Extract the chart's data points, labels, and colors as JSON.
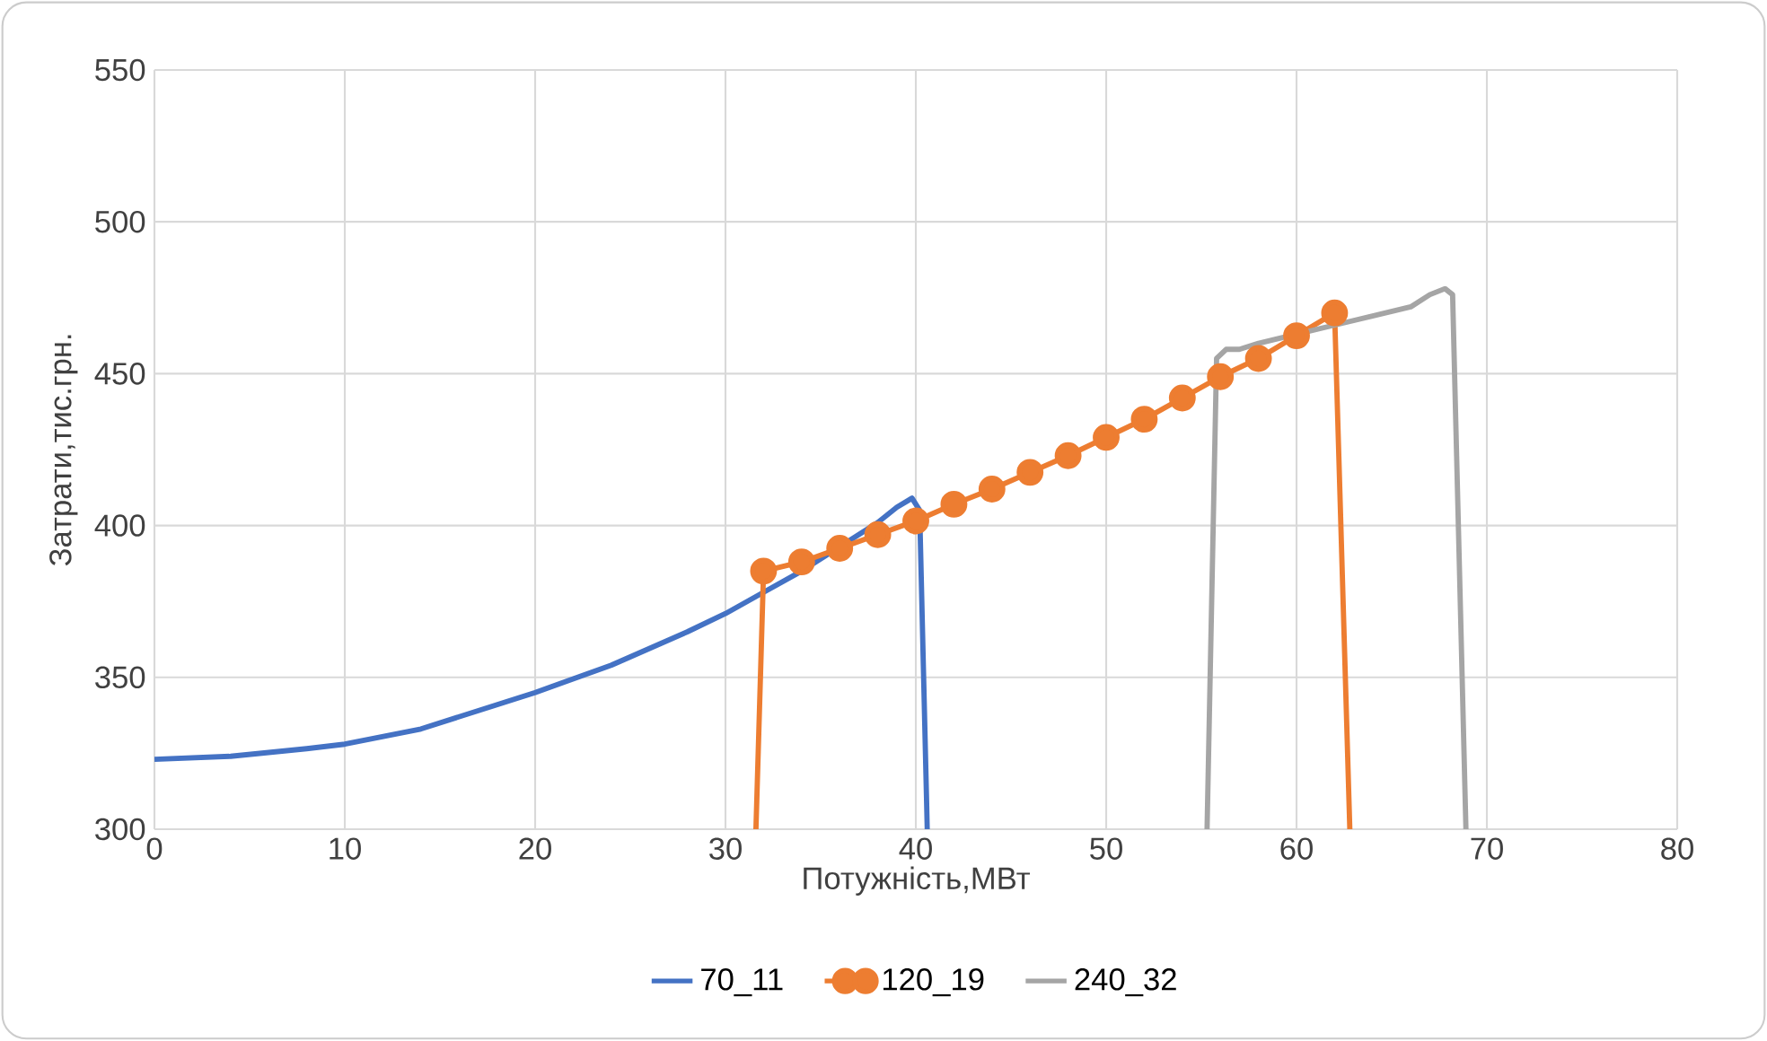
{
  "chart_data": {
    "type": "line",
    "xlabel": "Потужність,МВт",
    "ylabel": "Затрати,тис.грн.",
    "xlim": [
      0,
      80
    ],
    "xticks": [
      0,
      10,
      20,
      30,
      40,
      50,
      60,
      70,
      80
    ],
    "ylim": [
      300,
      550
    ],
    "yticks": [
      300,
      350,
      400,
      450,
      500,
      550
    ],
    "grid": true,
    "legend": "bottom",
    "series": [
      {
        "name": "70_11",
        "color": "#4472c4",
        "marker": "none",
        "x": [
          0,
          4,
          8,
          10,
          14,
          18,
          20,
          24,
          28,
          30,
          32,
          34,
          36,
          38,
          39,
          39.8,
          40.2,
          40.6
        ],
        "values": [
          323,
          324,
          326.5,
          328,
          333,
          341,
          345,
          354,
          365,
          371,
          378,
          385,
          393,
          401,
          406,
          409,
          405,
          300
        ]
      },
      {
        "name": "120_19",
        "color": "#ed7d31",
        "marker": "circle",
        "x": [
          31.6,
          32,
          34,
          36,
          38,
          40,
          42,
          44,
          46,
          48,
          50,
          52,
          54,
          56,
          58,
          60,
          62,
          62.8
        ],
        "values": [
          300,
          385,
          388,
          392.5,
          397,
          401.5,
          407,
          412,
          417.5,
          423,
          429,
          435,
          442,
          449,
          455,
          462.5,
          470,
          300
        ]
      },
      {
        "name": "240_32",
        "color": "#a5a5a5",
        "marker": "none",
        "x": [
          55.3,
          55.8,
          56.3,
          57,
          58,
          60,
          62,
          64,
          66,
          67,
          67.8,
          68.2,
          68.9
        ],
        "values": [
          300,
          455,
          458,
          458,
          460,
          463,
          466,
          469,
          472,
          476,
          478,
          476,
          300
        ]
      }
    ]
  }
}
